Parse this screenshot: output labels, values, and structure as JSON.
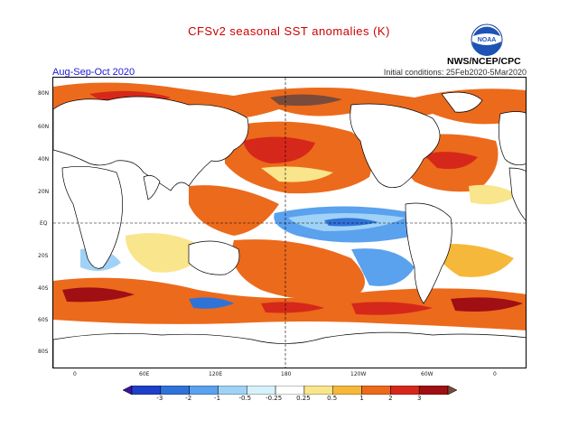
{
  "header": {
    "title": "CFSv2 seasonal SST anomalies (K)",
    "period": "Aug-Sep-Oct 2020",
    "initial_conditions": "Initial conditions: 25Feb2020-5Mar2020",
    "agency": "NWS/NCEP/CPC",
    "logo_text": "NOAA"
  },
  "map": {
    "lat_labels": [
      "80N",
      "60N",
      "40N",
      "20N",
      "EQ",
      "20S",
      "40S",
      "60S",
      "80S"
    ],
    "lon_labels": [
      "0",
      "60E",
      "120E",
      "180",
      "120W",
      "60W",
      "0"
    ]
  },
  "colorbar": {
    "labels": [
      "-3",
      "-2",
      "-1",
      "-0.5",
      "-0.25",
      "0.25",
      "0.5",
      "1",
      "2",
      "3"
    ],
    "colors": [
      "#3b12a0",
      "#1e3fc7",
      "#2f73d8",
      "#5aa1ee",
      "#9fd2f6",
      "#d6f1fa",
      "#ffffff",
      "#f9e58b",
      "#f6b83a",
      "#ec6a1c",
      "#d6281a",
      "#a00f13",
      "#7a4b3a"
    ]
  },
  "legend_colors": {
    "title": "#cc0000",
    "period": "#1a1ad6"
  }
}
